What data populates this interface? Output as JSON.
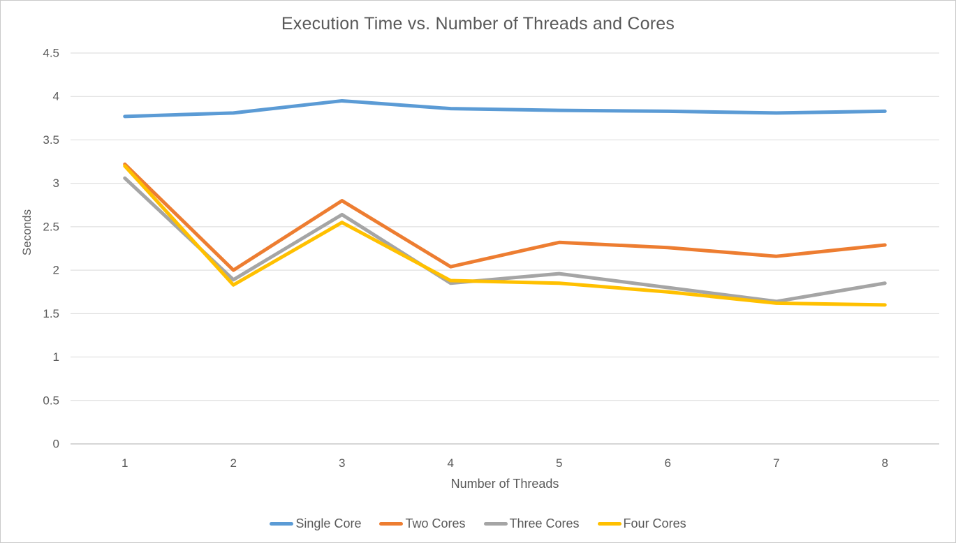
{
  "chart_data": {
    "type": "line",
    "title": "Execution Time vs. Number of Threads and Cores",
    "xlabel": "Number of Threads",
    "ylabel": "Seconds",
    "x": [
      1,
      2,
      3,
      4,
      5,
      6,
      7,
      8
    ],
    "ylim": [
      0,
      4.5
    ],
    "ytick_step": 0.5,
    "yticks": [
      "4.5",
      "4",
      "3.5",
      "3",
      "2.5",
      "2",
      "1.5",
      "1",
      "0.5",
      "0"
    ],
    "grid": true,
    "legend_position": "bottom",
    "series": [
      {
        "name": "Single Core",
        "color": "#5B9BD5",
        "values": [
          3.77,
          3.81,
          3.95,
          3.86,
          3.84,
          3.83,
          3.81,
          3.83
        ]
      },
      {
        "name": "Two Cores",
        "color": "#ED7D31",
        "values": [
          3.22,
          2.0,
          2.8,
          2.04,
          2.32,
          2.26,
          2.16,
          2.29
        ]
      },
      {
        "name": "Three Cores",
        "color": "#A5A5A5",
        "values": [
          3.06,
          1.89,
          2.64,
          1.85,
          1.96,
          1.8,
          1.64,
          1.85
        ]
      },
      {
        "name": "Four Cores",
        "color": "#FFC000",
        "values": [
          3.2,
          1.83,
          2.55,
          1.88,
          1.85,
          1.75,
          1.62,
          1.6
        ]
      }
    ],
    "colors": {
      "text": "#595959",
      "gridline": "#D9D9D9",
      "axis_line": "#C9C9C9",
      "background": "#FFFFFF"
    }
  }
}
